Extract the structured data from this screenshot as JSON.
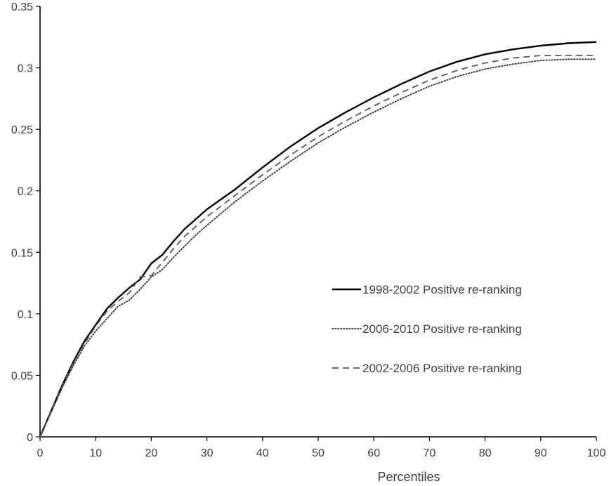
{
  "chart_data": {
    "type": "line",
    "title": "",
    "xlabel": "Percentiles",
    "ylabel": "",
    "xlim": [
      0,
      100
    ],
    "ylim": [
      0,
      0.35
    ],
    "x_ticks": [
      "0",
      "10",
      "20",
      "30",
      "40",
      "50",
      "60",
      "70",
      "80",
      "90",
      "100"
    ],
    "y_ticks": [
      "0",
      "0.05",
      "0.1",
      "0.15",
      "0.2",
      "0.25",
      "0.3",
      "0.35"
    ],
    "grid": false,
    "legend_position": "right",
    "x": [
      0,
      2,
      4,
      6,
      8,
      10,
      12,
      14,
      16,
      18,
      20,
      22,
      24,
      26,
      28,
      30,
      35,
      40,
      45,
      50,
      55,
      60,
      65,
      70,
      75,
      80,
      85,
      90,
      95,
      100
    ],
    "series": [
      {
        "name": "1998-2002 Positive re-ranking",
        "style": "solid",
        "color": "#000000",
        "values": [
          0,
          0.021,
          0.042,
          0.061,
          0.078,
          0.091,
          0.104,
          0.113,
          0.121,
          0.128,
          0.141,
          0.148,
          0.159,
          0.169,
          0.177,
          0.185,
          0.201,
          0.219,
          0.236,
          0.251,
          0.264,
          0.276,
          0.287,
          0.297,
          0.305,
          0.311,
          0.315,
          0.318,
          0.32,
          0.321
        ]
      },
      {
        "name": "2006-2010 Positive re-ranking",
        "style": "dotted",
        "color": "#333333",
        "values": [
          0,
          0.02,
          0.04,
          0.058,
          0.074,
          0.086,
          0.096,
          0.106,
          0.111,
          0.12,
          0.13,
          0.136,
          0.146,
          0.155,
          0.164,
          0.172,
          0.191,
          0.208,
          0.224,
          0.239,
          0.252,
          0.264,
          0.275,
          0.285,
          0.293,
          0.299,
          0.303,
          0.306,
          0.307,
          0.307
        ]
      },
      {
        "name": "2002-2006 Positive re-ranking",
        "style": "dashed",
        "color": "#595959",
        "values": [
          0,
          0.021,
          0.041,
          0.06,
          0.076,
          0.09,
          0.102,
          0.11,
          0.117,
          0.13,
          0.131,
          0.142,
          0.153,
          0.163,
          0.171,
          0.179,
          0.196,
          0.213,
          0.229,
          0.244,
          0.257,
          0.269,
          0.28,
          0.29,
          0.298,
          0.304,
          0.308,
          0.31,
          0.31,
          0.31
        ]
      }
    ]
  }
}
